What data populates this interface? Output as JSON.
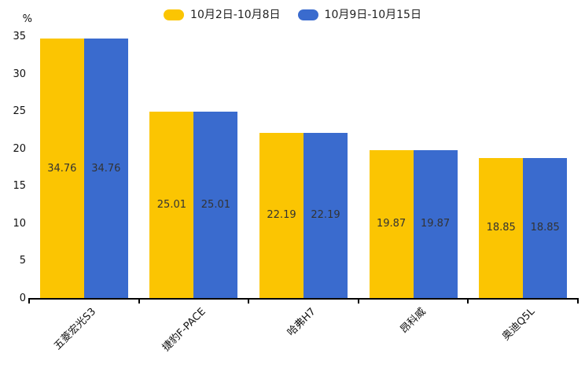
{
  "chart_data": {
    "type": "bar",
    "title": "",
    "categories": [
      "五菱宏光S3",
      "捷豹F-PACE",
      "哈弗H7",
      "昂科威",
      "奥迪Q5L"
    ],
    "series": [
      {
        "name": "10月2日-10月8日",
        "color": "#FBC502",
        "values": [
          34.76,
          25.01,
          22.19,
          19.87,
          18.85
        ]
      },
      {
        "name": "10月9日-10月15日",
        "color": "#3A6BCE",
        "values": [
          34.76,
          25.01,
          22.19,
          19.87,
          18.85
        ]
      }
    ],
    "xlabel": "",
    "ylabel": "%",
    "ylim": [
      0,
      35
    ],
    "yticks": [
      0,
      5,
      10,
      15,
      20,
      25,
      30,
      35
    ],
    "value_labels": true,
    "value_label_decimals": 2,
    "grid": false,
    "legend_position": "top"
  },
  "legend": {
    "items": [
      {
        "label": "10月2日-10月8日",
        "color": "#FBC502"
      },
      {
        "label": "10月9日-10月15日",
        "color": "#3A6BCE"
      }
    ]
  },
  "colors": {
    "axis": "#000000",
    "bar_value_text": "#333333",
    "tick_text": "#111111",
    "background": "#ffffff"
  }
}
